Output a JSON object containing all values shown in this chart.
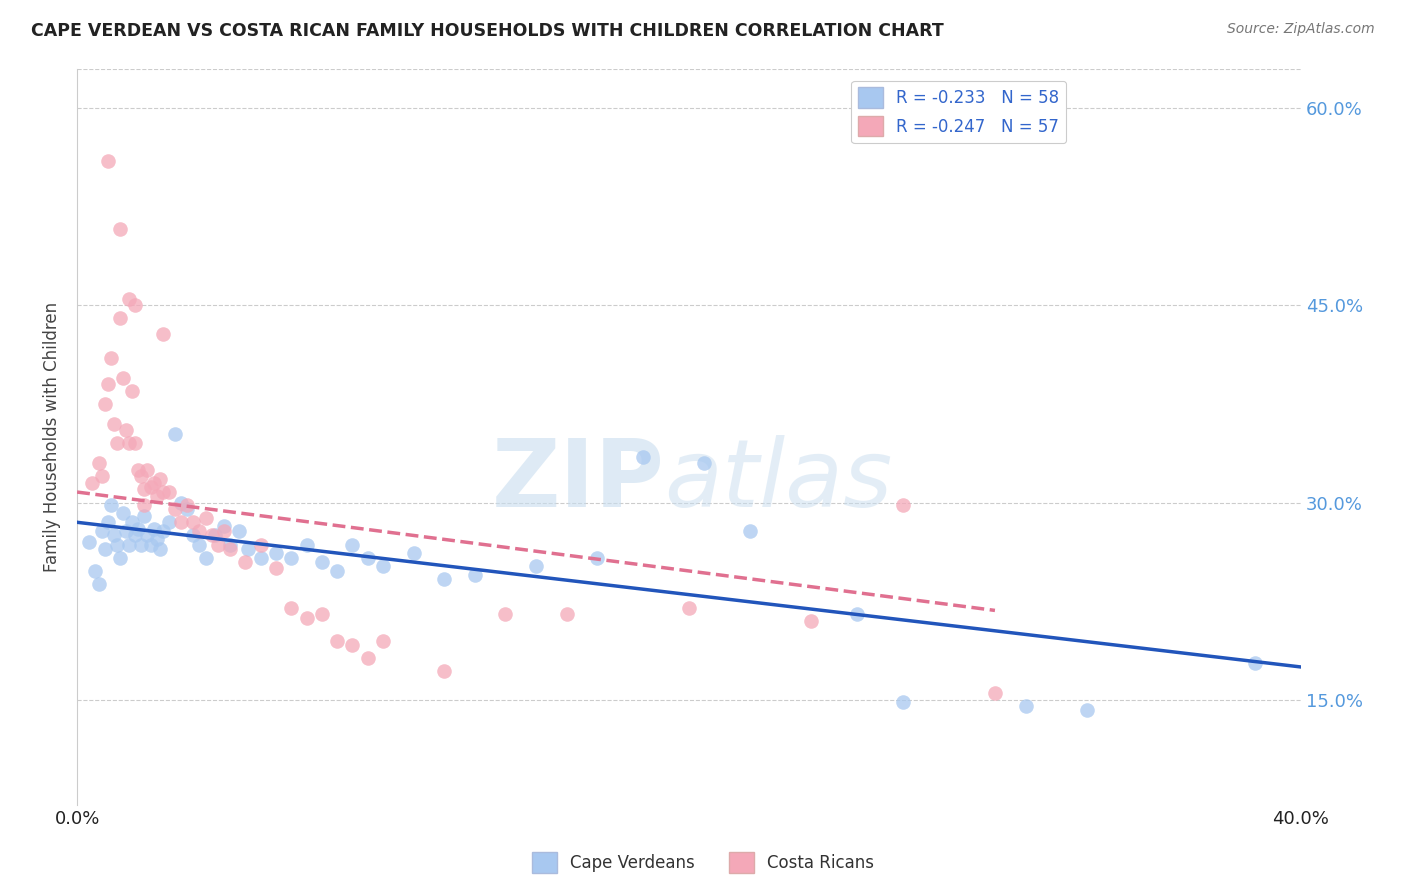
{
  "title": "CAPE VERDEAN VS COSTA RICAN FAMILY HOUSEHOLDS WITH CHILDREN CORRELATION CHART",
  "source": "Source: ZipAtlas.com",
  "ylabel": "Family Households with Children",
  "xlim": [
    0.0,
    0.4
  ],
  "ylim": [
    0.07,
    0.63
  ],
  "yticks": [
    0.15,
    0.3,
    0.45,
    0.6
  ],
  "ytick_labels": [
    "15.0%",
    "30.0%",
    "45.0%",
    "60.0%"
  ],
  "xticks": [
    0.0,
    0.05,
    0.1,
    0.15,
    0.2,
    0.25,
    0.3,
    0.35,
    0.4
  ],
  "xtick_labels": [
    "0.0%",
    "",
    "",
    "",
    "",
    "",
    "",
    "",
    "40.0%"
  ],
  "legend_blue_label": "R = -0.233   N = 58",
  "legend_pink_label": "R = -0.247   N = 57",
  "legend_label_cape": "Cape Verdeans",
  "legend_label_costa": "Costa Ricans",
  "blue_color": "#A8C8F0",
  "pink_color": "#F4A8B8",
  "blue_line_color": "#2255BB",
  "pink_line_color": "#E07090",
  "blue_scatter": [
    [
      0.004,
      0.27
    ],
    [
      0.006,
      0.248
    ],
    [
      0.007,
      0.238
    ],
    [
      0.008,
      0.278
    ],
    [
      0.009,
      0.265
    ],
    [
      0.01,
      0.285
    ],
    [
      0.011,
      0.298
    ],
    [
      0.012,
      0.275
    ],
    [
      0.013,
      0.268
    ],
    [
      0.014,
      0.258
    ],
    [
      0.015,
      0.292
    ],
    [
      0.016,
      0.278
    ],
    [
      0.017,
      0.268
    ],
    [
      0.018,
      0.285
    ],
    [
      0.019,
      0.275
    ],
    [
      0.02,
      0.28
    ],
    [
      0.021,
      0.268
    ],
    [
      0.022,
      0.29
    ],
    [
      0.023,
      0.275
    ],
    [
      0.024,
      0.268
    ],
    [
      0.025,
      0.28
    ],
    [
      0.026,
      0.272
    ],
    [
      0.027,
      0.265
    ],
    [
      0.028,
      0.278
    ],
    [
      0.03,
      0.285
    ],
    [
      0.032,
      0.352
    ],
    [
      0.034,
      0.3
    ],
    [
      0.036,
      0.295
    ],
    [
      0.038,
      0.275
    ],
    [
      0.04,
      0.268
    ],
    [
      0.042,
      0.258
    ],
    [
      0.045,
      0.275
    ],
    [
      0.048,
      0.282
    ],
    [
      0.05,
      0.268
    ],
    [
      0.053,
      0.278
    ],
    [
      0.056,
      0.265
    ],
    [
      0.06,
      0.258
    ],
    [
      0.065,
      0.262
    ],
    [
      0.07,
      0.258
    ],
    [
      0.075,
      0.268
    ],
    [
      0.08,
      0.255
    ],
    [
      0.085,
      0.248
    ],
    [
      0.09,
      0.268
    ],
    [
      0.095,
      0.258
    ],
    [
      0.1,
      0.252
    ],
    [
      0.11,
      0.262
    ],
    [
      0.12,
      0.242
    ],
    [
      0.13,
      0.245
    ],
    [
      0.15,
      0.252
    ],
    [
      0.17,
      0.258
    ],
    [
      0.185,
      0.335
    ],
    [
      0.205,
      0.33
    ],
    [
      0.22,
      0.278
    ],
    [
      0.255,
      0.215
    ],
    [
      0.27,
      0.148
    ],
    [
      0.31,
      0.145
    ],
    [
      0.33,
      0.142
    ],
    [
      0.385,
      0.178
    ]
  ],
  "pink_scatter": [
    [
      0.005,
      0.315
    ],
    [
      0.007,
      0.33
    ],
    [
      0.008,
      0.32
    ],
    [
      0.009,
      0.375
    ],
    [
      0.01,
      0.39
    ],
    [
      0.011,
      0.41
    ],
    [
      0.012,
      0.36
    ],
    [
      0.013,
      0.345
    ],
    [
      0.014,
      0.44
    ],
    [
      0.015,
      0.395
    ],
    [
      0.016,
      0.355
    ],
    [
      0.017,
      0.345
    ],
    [
      0.018,
      0.385
    ],
    [
      0.019,
      0.345
    ],
    [
      0.02,
      0.325
    ],
    [
      0.021,
      0.32
    ],
    [
      0.022,
      0.31
    ],
    [
      0.022,
      0.298
    ],
    [
      0.023,
      0.325
    ],
    [
      0.024,
      0.312
    ],
    [
      0.025,
      0.315
    ],
    [
      0.026,
      0.305
    ],
    [
      0.027,
      0.318
    ],
    [
      0.028,
      0.308
    ],
    [
      0.03,
      0.308
    ],
    [
      0.032,
      0.295
    ],
    [
      0.034,
      0.285
    ],
    [
      0.036,
      0.298
    ],
    [
      0.038,
      0.285
    ],
    [
      0.04,
      0.278
    ],
    [
      0.042,
      0.288
    ],
    [
      0.044,
      0.275
    ],
    [
      0.046,
      0.268
    ],
    [
      0.048,
      0.278
    ],
    [
      0.05,
      0.265
    ],
    [
      0.055,
      0.255
    ],
    [
      0.06,
      0.268
    ],
    [
      0.065,
      0.25
    ],
    [
      0.07,
      0.22
    ],
    [
      0.075,
      0.212
    ],
    [
      0.08,
      0.215
    ],
    [
      0.085,
      0.195
    ],
    [
      0.09,
      0.192
    ],
    [
      0.095,
      0.182
    ],
    [
      0.1,
      0.195
    ],
    [
      0.01,
      0.56
    ],
    [
      0.014,
      0.508
    ],
    [
      0.017,
      0.455
    ],
    [
      0.019,
      0.45
    ],
    [
      0.028,
      0.428
    ],
    [
      0.14,
      0.215
    ],
    [
      0.16,
      0.215
    ],
    [
      0.2,
      0.22
    ],
    [
      0.24,
      0.21
    ],
    [
      0.27,
      0.298
    ],
    [
      0.3,
      0.155
    ],
    [
      0.12,
      0.172
    ]
  ],
  "blue_line_x": [
    0.0,
    0.4
  ],
  "blue_line_y": [
    0.285,
    0.175
  ],
  "pink_line_x": [
    0.0,
    0.3
  ],
  "pink_line_y": [
    0.308,
    0.218
  ]
}
